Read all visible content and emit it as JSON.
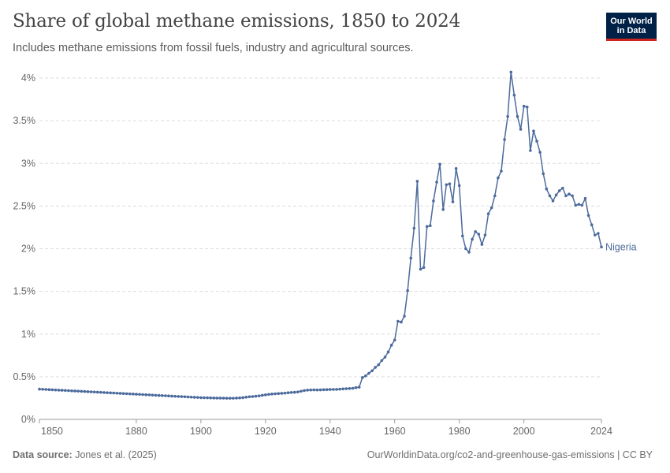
{
  "header": {
    "title": "Share of global methane emissions, 1850 to 2024",
    "subtitle": "Includes methane emissions from fossil fuels, industry and agricultural sources."
  },
  "logo": {
    "line1": "Our World",
    "line2": "in Data"
  },
  "footer": {
    "source_label": "Data source:",
    "source_text": "Jones et al. (2025)",
    "right_text": "OurWorldinData.org/co2-and-greenhouse-gas-emissions | CC BY"
  },
  "colors": {
    "series": "#4c6a9c",
    "grid": "#dddddd",
    "axis": "#999999",
    "logo_bg": "#002147",
    "logo_accent": "#ce261e"
  },
  "chart_data": {
    "type": "line",
    "title": "Share of global methane emissions, 1850 to 2024",
    "xlim": [
      1850,
      2024
    ],
    "ylim": [
      0,
      4
    ],
    "x_ticks": [
      1850,
      1880,
      1900,
      1920,
      1940,
      1960,
      1980,
      2000,
      2024
    ],
    "y_ticks": [
      0,
      0.5,
      1,
      1.5,
      2,
      2.5,
      3,
      3.5,
      4
    ],
    "y_tick_labels": [
      "0%",
      "0.5%",
      "1%",
      "1.5%",
      "2%",
      "2.5%",
      "3%",
      "3.5%",
      "4%"
    ],
    "grid": "horizontal",
    "series": [
      {
        "name": "Nigeria",
        "start_year": 1850,
        "values": [
          0.355,
          0.353,
          0.351,
          0.349,
          0.347,
          0.345,
          0.343,
          0.341,
          0.339,
          0.337,
          0.335,
          0.333,
          0.331,
          0.329,
          0.327,
          0.325,
          0.323,
          0.321,
          0.319,
          0.317,
          0.315,
          0.313,
          0.311,
          0.309,
          0.307,
          0.305,
          0.303,
          0.301,
          0.299,
          0.297,
          0.295,
          0.293,
          0.291,
          0.289,
          0.287,
          0.285,
          0.283,
          0.281,
          0.279,
          0.277,
          0.275,
          0.273,
          0.271,
          0.269,
          0.267,
          0.265,
          0.263,
          0.261,
          0.259,
          0.257,
          0.255,
          0.254,
          0.253,
          0.252,
          0.251,
          0.25,
          0.25,
          0.249,
          0.248,
          0.248,
          0.248,
          0.25,
          0.252,
          0.255,
          0.26,
          0.265,
          0.268,
          0.272,
          0.276,
          0.282,
          0.288,
          0.293,
          0.297,
          0.3,
          0.303,
          0.305,
          0.308,
          0.312,
          0.316,
          0.318,
          0.322,
          0.33,
          0.338,
          0.343,
          0.345,
          0.346,
          0.345,
          0.346,
          0.348,
          0.349,
          0.35,
          0.351,
          0.352,
          0.354,
          0.357,
          0.36,
          0.362,
          0.365,
          0.372,
          0.378,
          0.49,
          0.51,
          0.54,
          0.57,
          0.61,
          0.64,
          0.69,
          0.73,
          0.79,
          0.87,
          0.93,
          1.15,
          1.14,
          1.21,
          1.51,
          1.89,
          2.24,
          2.79,
          1.76,
          1.78,
          2.26,
          2.27,
          2.56,
          2.78,
          2.99,
          2.46,
          2.75,
          2.76,
          2.55,
          2.94,
          2.74,
          2.15,
          2.0,
          1.96,
          2.11,
          2.2,
          2.17,
          2.05,
          2.16,
          2.41,
          2.48,
          2.62,
          2.83,
          2.91,
          3.28,
          3.55,
          4.07,
          3.8,
          3.55,
          3.4,
          3.67,
          3.66,
          3.15,
          3.38,
          3.26,
          3.13,
          2.88,
          2.7,
          2.62,
          2.56,
          2.63,
          2.68,
          2.71,
          2.62,
          2.64,
          2.62,
          2.51,
          2.52,
          2.51,
          2.59,
          2.39,
          2.28,
          2.16,
          2.18,
          2.02
        ]
      }
    ]
  }
}
